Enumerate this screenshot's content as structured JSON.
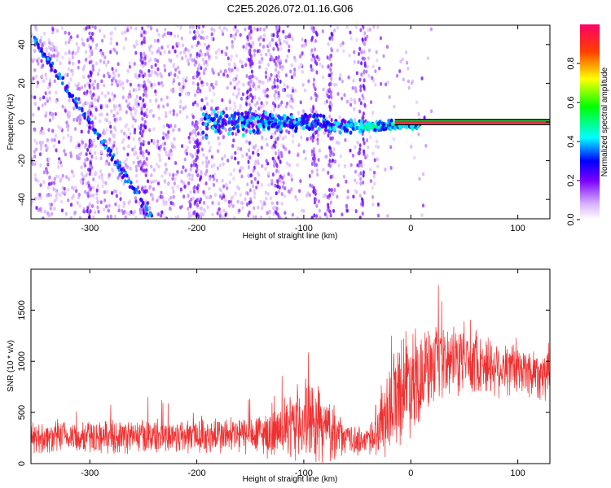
{
  "title": "C2E5.2026.072.01.16.G06",
  "chart_data": [
    {
      "type": "heatmap",
      "xlabel": "Height of straight line (km)",
      "ylabel": "Frequency (Hz)",
      "xlim": [
        -355,
        130
      ],
      "ylim": [
        -50,
        50
      ],
      "xticks": [
        -300,
        -200,
        -100,
        0,
        100
      ],
      "yticks": [
        -40,
        -20,
        0,
        20,
        40
      ],
      "colorbar": {
        "label": "Normalized spectral amplitude",
        "range": [
          0,
          1
        ],
        "ticks": [
          0.0,
          0.2,
          0.4,
          0.6,
          0.8
        ]
      },
      "features": {
        "carrier_line": {
          "freq_hz": 0,
          "x_from": -15,
          "x_to": 130,
          "amplitude": 0.95
        },
        "diagonal_track": {
          "x_from": -355,
          "x_to": -240,
          "freq_from": 45,
          "freq_to": -50
        },
        "central_cluster": {
          "x_from": -195,
          "x_to": 10,
          "freq_center": 0,
          "freq_spread": 8
        },
        "vertical_bands_x": [
          -300,
          -250,
          -200,
          -150,
          -125,
          -90,
          -75,
          -45
        ]
      }
    },
    {
      "type": "line",
      "xlabel": "Height of straight line (km)",
      "ylabel": "SNR (10 * v/v)",
      "xlim": [
        -355,
        130
      ],
      "ylim": [
        0,
        1900
      ],
      "xticks": [
        -300,
        -200,
        -100,
        0,
        100
      ],
      "yticks": [
        0,
        500,
        1000,
        1500
      ],
      "series": [
        {
          "name": "SNR",
          "color": "#f03030",
          "envelope": {
            "x": [
              -355,
              -300,
              -250,
              -200,
              -150,
              -120,
              -100,
              -80,
              -60,
              -40,
              -20,
              -10,
              0,
              10,
              25,
              50,
              75,
              100,
              130
            ],
            "mean": [
              250,
              260,
              270,
              270,
              280,
              300,
              430,
              350,
              240,
              220,
              560,
              760,
              840,
              880,
              950,
              1030,
              960,
              910,
              880
            ],
            "spread": [
              170,
              180,
              190,
              200,
              220,
              280,
              480,
              380,
              160,
              170,
              520,
              620,
              620,
              520,
              420,
              380,
              330,
              300,
              300
            ]
          }
        }
      ]
    }
  ]
}
